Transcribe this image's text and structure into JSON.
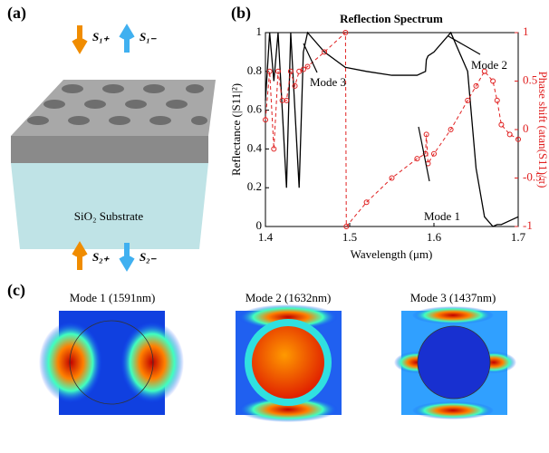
{
  "panel_labels": [
    "(a)",
    "(b)",
    "(c)"
  ],
  "diagram": {
    "substrate": "SiO₂ Substrate",
    "ports": [
      "S₁₊",
      "S₁₋",
      "S₂₊",
      "S₂₋"
    ]
  },
  "mode_maps": [
    "Mode 1 (1591nm)",
    "Mode 2 (1632nm)",
    "Mode 3 (1437nm)"
  ],
  "chart_data": {
    "type": "line",
    "title": "Reflection Spectrum",
    "xlabel": "Wavelength (μm)",
    "ylabel": "Reflectance (|S11|²)",
    "y2label": "Phase shift (atan(S11)/π)",
    "x": [
      1.4,
      1.405,
      1.41,
      1.415,
      1.42,
      1.425,
      1.43,
      1.435,
      1.44,
      1.445,
      1.45,
      1.47,
      1.495,
      1.496,
      1.52,
      1.55,
      1.58,
      1.59,
      1.591,
      1.593,
      1.6,
      1.62,
      1.64,
      1.65,
      1.66,
      1.67,
      1.675,
      1.68,
      1.69,
      1.7
    ],
    "series": [
      {
        "name": "Reflectance",
        "color": "#000000",
        "values": [
          0.65,
          1,
          0.75,
          1,
          0.6,
          0.2,
          1,
          0.6,
          0.2,
          0.9,
          1,
          0.9,
          0.82,
          0.82,
          0.8,
          0.78,
          0.78,
          0.8,
          0.86,
          0.88,
          0.9,
          1,
          0.8,
          0.3,
          0.05,
          0,
          0.01,
          0.01,
          0.03,
          0.05
        ]
      },
      {
        "name": "Phase shift",
        "color": "#e02020",
        "axis": "y2",
        "values": [
          0.1,
          0.6,
          -0.2,
          0.6,
          0.3,
          0.3,
          0.6,
          0.45,
          0.6,
          0.62,
          0.65,
          0.8,
          1,
          -1,
          -0.75,
          -0.5,
          -0.3,
          -0.25,
          -0.05,
          -0.35,
          -0.25,
          0,
          0.3,
          0.45,
          0.6,
          0.5,
          0.3,
          0.05,
          -0.05,
          -0.1
        ]
      }
    ],
    "xlim": [
      1.4,
      1.7
    ],
    "xticks": [
      1.4,
      1.5,
      1.6,
      1.7
    ],
    "ylim": [
      0,
      1
    ],
    "yticks": [
      0,
      0.2,
      0.4,
      0.6,
      0.8,
      1
    ],
    "y2lim": [
      -1,
      1
    ],
    "y2ticks": [
      -1,
      -0.5,
      0,
      0.5,
      1
    ],
    "annotations": [
      "Mode 1",
      "Mode 2",
      "Mode 3"
    ]
  }
}
